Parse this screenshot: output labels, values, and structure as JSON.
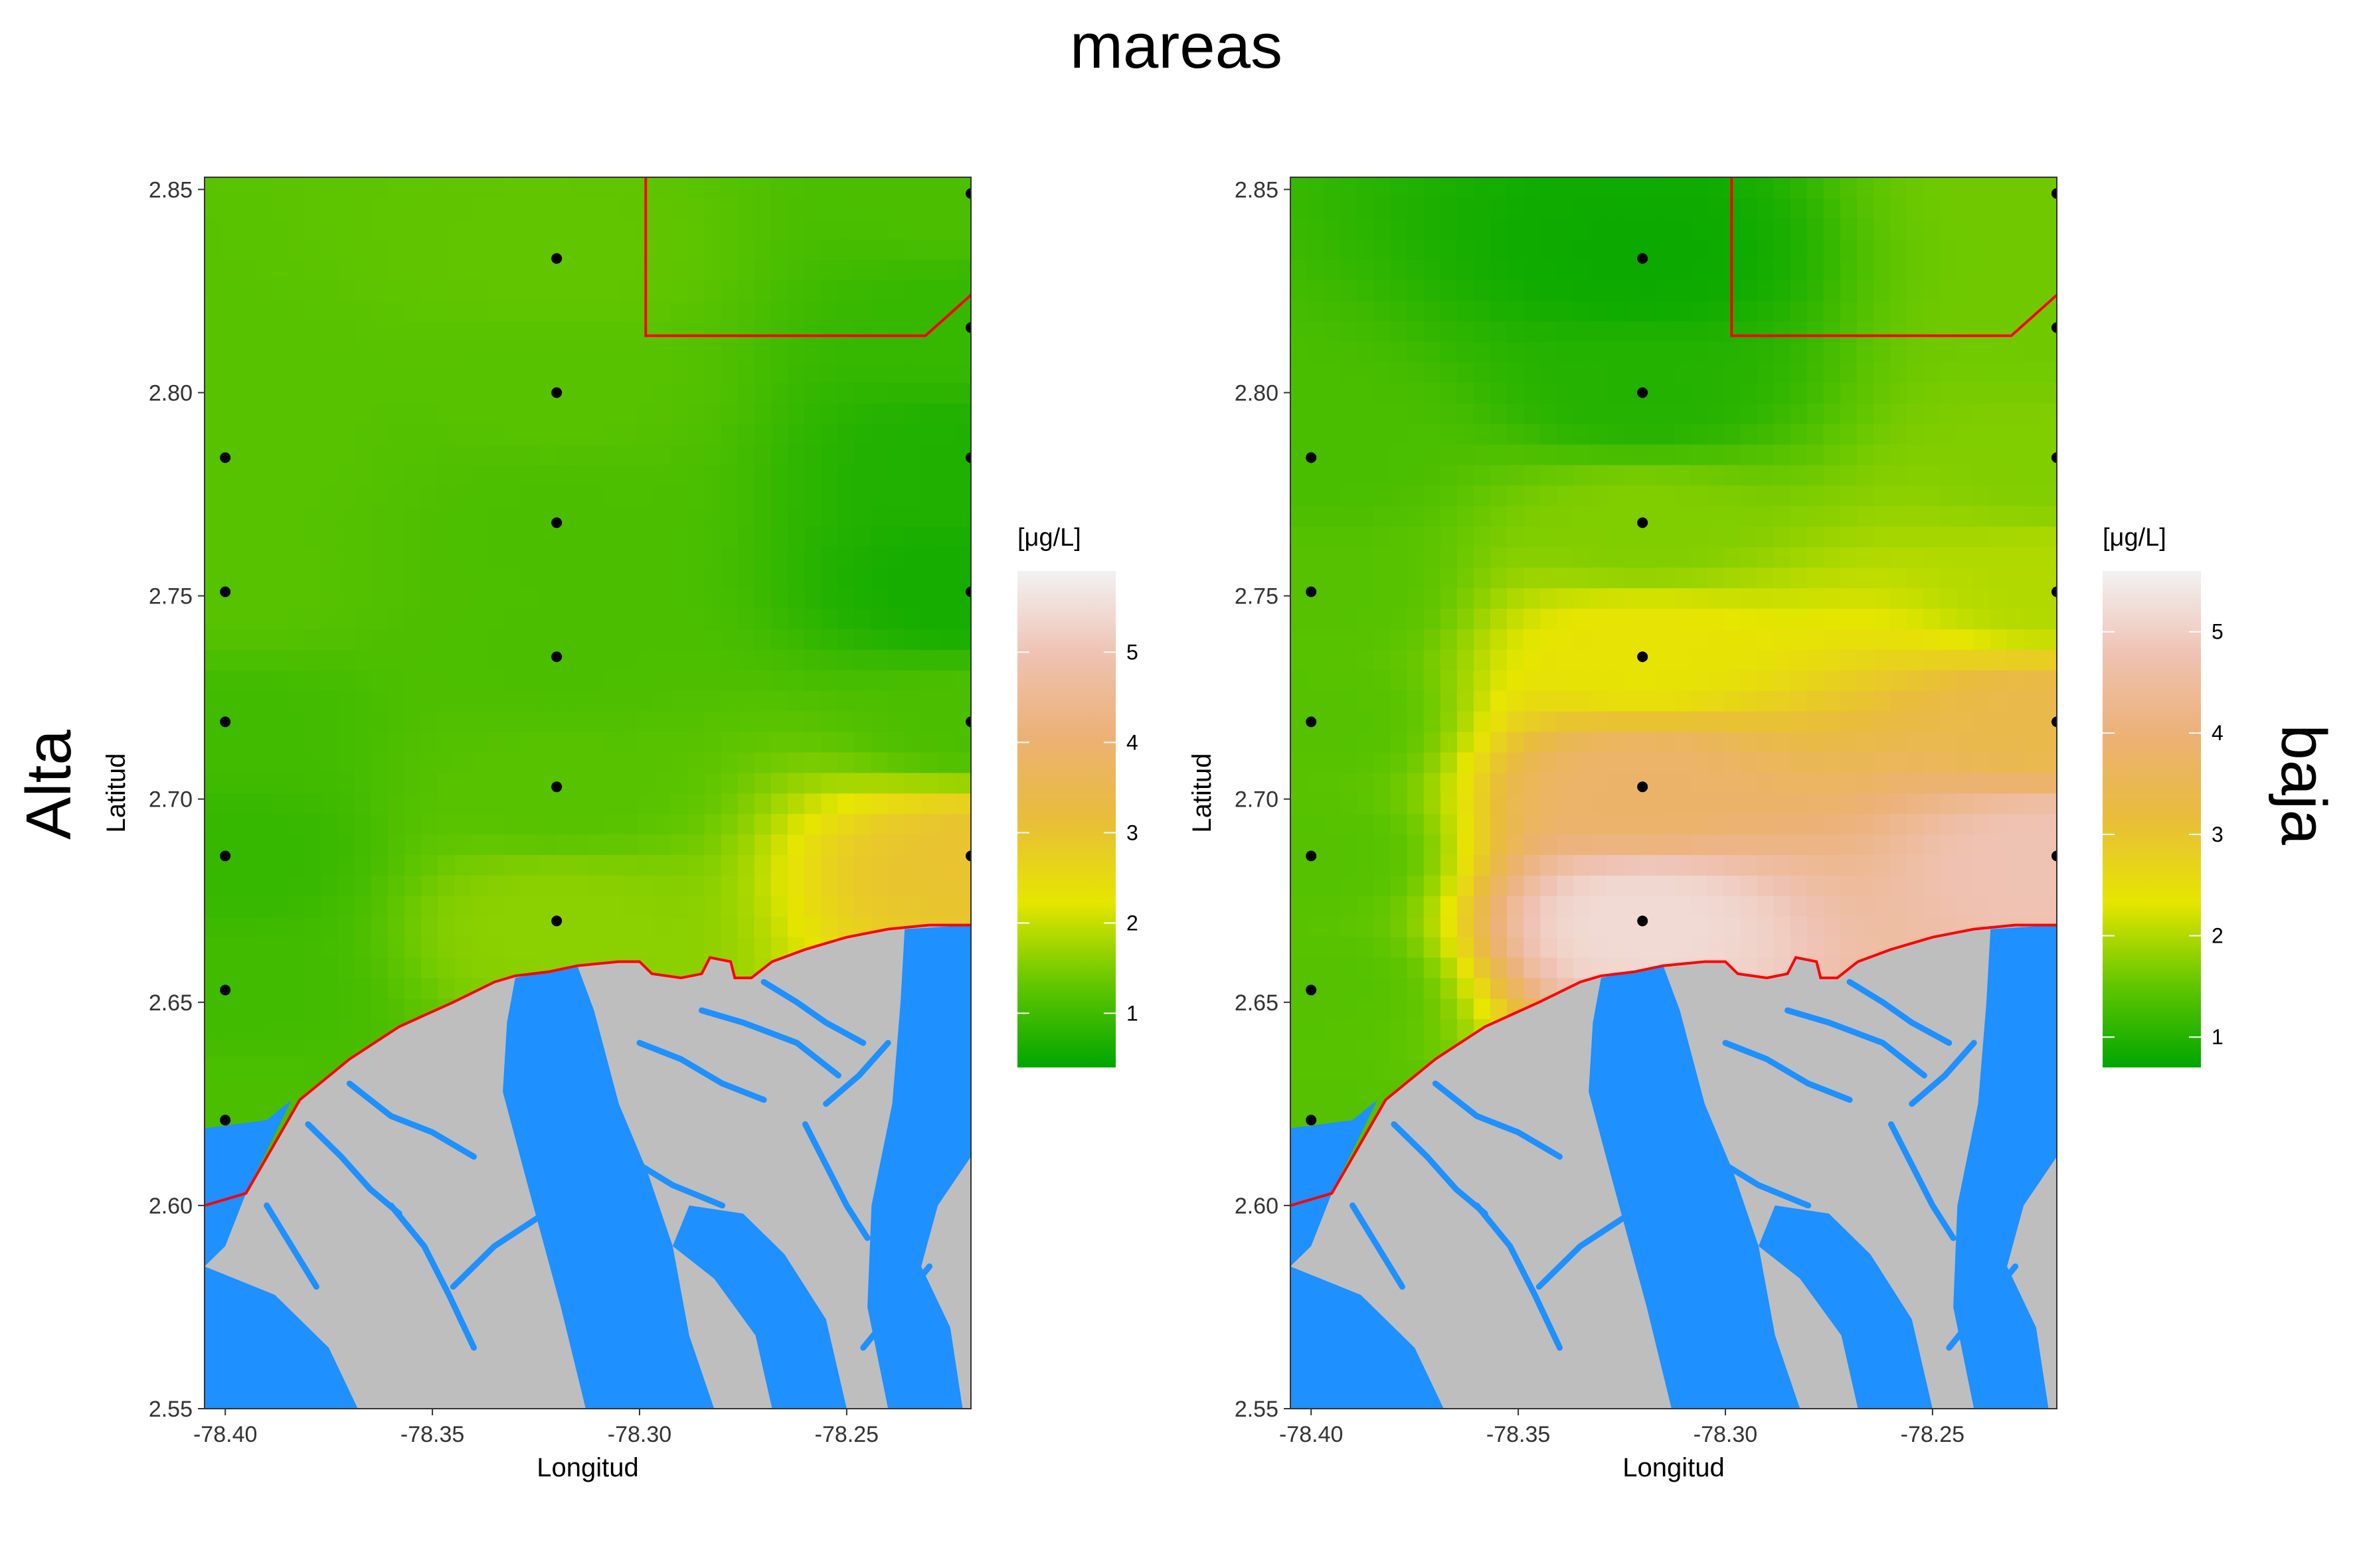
{
  "figure": {
    "title": "mareas",
    "left_label": "Alta",
    "right_label": "baja"
  },
  "colors": {
    "land": "#bebebe",
    "water": "#1e90ff",
    "boundary": "#ff0000",
    "station": "#000000",
    "scale": [
      "#00a600",
      "#63c600",
      "#e6e600",
      "#e9bd3a",
      "#ecb176",
      "#efc2b3",
      "#f2f2f2"
    ]
  },
  "chart_data": [
    {
      "type": "heatmap",
      "panel": "Alta",
      "xlabel": "Longitud",
      "ylabel": "Latitud",
      "xlim": [
        -78.405,
        -78.22
      ],
      "ylim": [
        2.55,
        2.853
      ],
      "x_ticks": [
        -78.4,
        -78.35,
        -78.3,
        -78.25
      ],
      "x_tick_labels": [
        "-78.40",
        "-78.35",
        "-78.30",
        "-78.25"
      ],
      "y_ticks": [
        2.55,
        2.6,
        2.65,
        2.7,
        2.75,
        2.8,
        2.85
      ],
      "y_tick_labels": [
        "2.55",
        "2.60",
        "2.65",
        "2.70",
        "2.75",
        "2.80",
        "2.85"
      ],
      "legend": {
        "title": "[μg/L]",
        "min": 0.4,
        "max": 5.9,
        "ticks": [
          1,
          2,
          3,
          4,
          5
        ],
        "tick_labels": [
          "1",
          "2",
          "3",
          "4",
          "5"
        ]
      },
      "stations": [
        {
          "x": -78.4,
          "y": 2.784,
          "v": 1.2
        },
        {
          "x": -78.4,
          "y": 2.751,
          "v": 1.2
        },
        {
          "x": -78.4,
          "y": 2.719,
          "v": 1.0
        },
        {
          "x": -78.4,
          "y": 2.686,
          "v": 0.9
        },
        {
          "x": -78.4,
          "y": 2.653,
          "v": 1.0
        },
        {
          "x": -78.4,
          "y": 2.621,
          "v": 1.1
        },
        {
          "x": -78.32,
          "y": 2.833,
          "v": 1.3
        },
        {
          "x": -78.32,
          "y": 2.8,
          "v": 1.2
        },
        {
          "x": -78.32,
          "y": 2.768,
          "v": 1.1
        },
        {
          "x": -78.32,
          "y": 2.735,
          "v": 1.1
        },
        {
          "x": -78.32,
          "y": 2.703,
          "v": 1.2
        },
        {
          "x": -78.32,
          "y": 2.67,
          "v": 1.6
        },
        {
          "x": -78.22,
          "y": 2.849,
          "v": 1.1
        },
        {
          "x": -78.22,
          "y": 2.816,
          "v": 0.9
        },
        {
          "x": -78.22,
          "y": 2.784,
          "v": 0.7
        },
        {
          "x": -78.22,
          "y": 2.751,
          "v": 0.6
        },
        {
          "x": -78.22,
          "y": 2.719,
          "v": 1.1
        },
        {
          "x": -78.22,
          "y": 2.686,
          "v": 3.0
        }
      ]
    },
    {
      "type": "heatmap",
      "panel": "baja",
      "xlabel": "Longitud",
      "ylabel": "Latitud",
      "xlim": [
        -78.405,
        -78.22
      ],
      "ylim": [
        2.55,
        2.853
      ],
      "x_ticks": [
        -78.4,
        -78.35,
        -78.3,
        -78.25
      ],
      "x_tick_labels": [
        "-78.40",
        "-78.35",
        "-78.30",
        "-78.25"
      ],
      "y_ticks": [
        2.55,
        2.6,
        2.65,
        2.7,
        2.75,
        2.8,
        2.85
      ],
      "y_tick_labels": [
        "2.55",
        "2.60",
        "2.65",
        "2.70",
        "2.75",
        "2.80",
        "2.85"
      ],
      "legend": {
        "title": "[μg/L]",
        "min": 0.7,
        "max": 5.6,
        "ticks": [
          1,
          2,
          3,
          4,
          5
        ],
        "tick_labels": [
          "1",
          "2",
          "3",
          "4",
          "5"
        ]
      },
      "stations": [
        {
          "x": -78.4,
          "y": 2.784,
          "v": 1.3
        },
        {
          "x": -78.4,
          "y": 2.751,
          "v": 1.4
        },
        {
          "x": -78.4,
          "y": 2.719,
          "v": 1.4
        },
        {
          "x": -78.4,
          "y": 2.686,
          "v": 1.4
        },
        {
          "x": -78.4,
          "y": 2.653,
          "v": 1.4
        },
        {
          "x": -78.4,
          "y": 2.621,
          "v": 1.4
        },
        {
          "x": -78.32,
          "y": 2.833,
          "v": 0.8
        },
        {
          "x": -78.32,
          "y": 2.8,
          "v": 1.0
        },
        {
          "x": -78.32,
          "y": 2.768,
          "v": 1.7
        },
        {
          "x": -78.32,
          "y": 2.735,
          "v": 2.4
        },
        {
          "x": -78.32,
          "y": 2.703,
          "v": 3.8
        },
        {
          "x": -78.32,
          "y": 2.67,
          "v": 5.2
        },
        {
          "x": -78.22,
          "y": 2.849,
          "v": 1.6
        },
        {
          "x": -78.22,
          "y": 2.816,
          "v": 1.6
        },
        {
          "x": -78.22,
          "y": 2.784,
          "v": 1.7
        },
        {
          "x": -78.22,
          "y": 2.751,
          "v": 2.0
        },
        {
          "x": -78.22,
          "y": 2.719,
          "v": 3.4
        },
        {
          "x": -78.22,
          "y": 2.686,
          "v": 4.8
        }
      ]
    }
  ]
}
